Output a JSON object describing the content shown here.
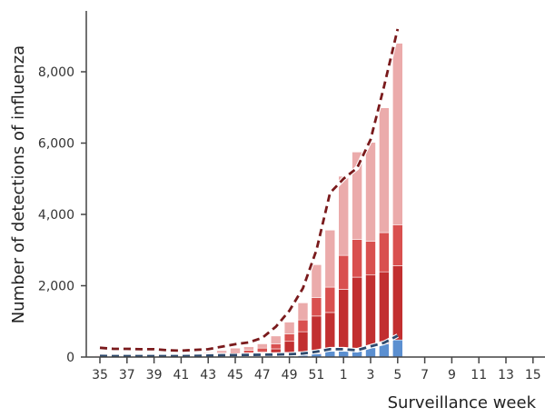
{
  "chart_data": {
    "type": "bar",
    "stacked": true,
    "title": "",
    "xlabel": "Surveillance week",
    "ylabel": "Number of detections of influenza",
    "ylim": [
      0,
      9700
    ],
    "yticks": [
      0,
      2000,
      4000,
      6000,
      8000
    ],
    "ytick_labels": [
      "0",
      "2,000",
      "4,000",
      "6,000",
      "8,000"
    ],
    "categories": [
      35,
      36,
      37,
      38,
      39,
      40,
      41,
      42,
      43,
      44,
      45,
      46,
      47,
      48,
      49,
      50,
      51,
      52,
      1,
      2,
      3,
      4,
      5,
      6,
      7,
      8,
      9,
      10,
      11,
      12,
      13,
      14,
      15
    ],
    "xtick_labels": [
      "35",
      "37",
      "39",
      "41",
      "43",
      "45",
      "47",
      "49",
      "51",
      "1",
      "3",
      "5",
      "7",
      "9",
      "11",
      "13",
      "15"
    ],
    "series": [
      {
        "color": "#5b8fd0",
        "values": [
          5,
          5,
          5,
          5,
          5,
          5,
          5,
          5,
          8,
          10,
          10,
          10,
          10,
          20,
          30,
          50,
          90,
          160,
          160,
          160,
          260,
          370,
          480,
          0,
          0,
          0,
          0,
          0,
          0,
          0,
          0,
          0,
          0
        ]
      },
      {
        "color": "#c22f30",
        "values": [
          15,
          15,
          15,
          15,
          15,
          15,
          15,
          15,
          30,
          50,
          70,
          100,
          130,
          210,
          410,
          660,
          1060,
          1090,
          1740,
          2080,
          2040,
          2020,
          2080,
          0,
          0,
          0,
          0,
          0,
          0,
          0,
          0,
          0,
          0
        ]
      },
      {
        "color": "#d9504f",
        "values": [
          10,
          10,
          10,
          10,
          10,
          10,
          10,
          20,
          30,
          50,
          70,
          80,
          110,
          140,
          210,
          330,
          520,
          710,
          950,
          1060,
          950,
          1100,
          1150,
          0,
          0,
          0,
          0,
          0,
          0,
          0,
          0,
          0,
          0
        ]
      },
      {
        "color": "#ebabab",
        "values": [
          20,
          20,
          20,
          20,
          20,
          20,
          20,
          30,
          50,
          70,
          100,
          100,
          120,
          220,
          330,
          480,
          920,
          1600,
          2220,
          2450,
          2770,
          3500,
          5090,
          0,
          0,
          0,
          0,
          0,
          0,
          0,
          0,
          0,
          0
        ]
      }
    ],
    "lines": [
      {
        "color": "#7a1a1c",
        "style": "dashed",
        "values": [
          260,
          230,
          230,
          220,
          220,
          190,
          180,
          200,
          220,
          290,
          360,
          410,
          540,
          850,
          1300,
          1930,
          3000,
          4600,
          5000,
          5300,
          6100,
          7600,
          9200
        ]
      },
      {
        "color": "#2e4a6e",
        "style": "dashed",
        "values": [
          30,
          25,
          25,
          25,
          25,
          25,
          25,
          30,
          40,
          50,
          55,
          60,
          65,
          70,
          80,
          100,
          150,
          220,
          220,
          190,
          300,
          400,
          600
        ]
      }
    ],
    "grid": false,
    "legend": "none"
  }
}
